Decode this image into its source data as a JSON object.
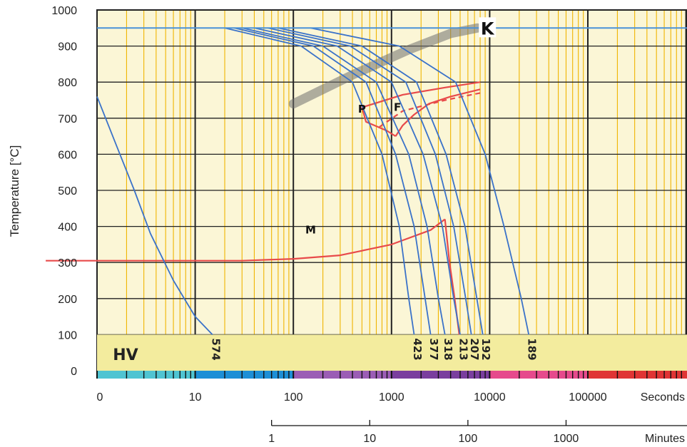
{
  "chart_data": {
    "type": "line",
    "ylabel": "Temperature [°C]",
    "ylim": [
      0,
      1000
    ],
    "y_ticks": [
      "0",
      "100",
      "200",
      "300",
      "400",
      "500",
      "600",
      "700",
      "800",
      "900",
      "1000"
    ],
    "x_scale": "log",
    "x_seconds_ticks": [
      "0",
      "10",
      "100",
      "1000",
      "10000",
      "100000"
    ],
    "x_seconds_unit": "Seconds",
    "x_minutes_ticks": [
      "1",
      "10",
      "100",
      "1000"
    ],
    "x_minutes_unit": "Minutes",
    "austenitizing_temperature": 950,
    "austenitizing_label": "K",
    "hardness_band_label": "HV",
    "hardness_values": [
      {
        "label": "574",
        "x": 15
      },
      {
        "label": "423",
        "x": 1700
      },
      {
        "label": "377",
        "x": 2500
      },
      {
        "label": "318",
        "x": 3500
      },
      {
        "label": "213",
        "x": 5000
      },
      {
        "label": "207",
        "x": 6500
      },
      {
        "label": "192",
        "x": 8500
      },
      {
        "label": "189",
        "x": 25000
      }
    ],
    "region_labels": [
      {
        "label": "M",
        "x": 150,
        "y": 380
      },
      {
        "label": "P",
        "x": 500,
        "y": 715
      },
      {
        "label": "F",
        "x": 1150,
        "y": 720
      }
    ],
    "cooling_curves": [
      {
        "name": "574",
        "x": [
          1,
          1.6,
          2.4,
          3.5,
          6,
          10,
          15
        ],
        "y": [
          760,
          620,
          500,
          380,
          250,
          150,
          100
        ]
      },
      {
        "name": "423",
        "x": [
          20,
          120,
          400,
          800,
          1200,
          1500,
          1700
        ],
        "y": [
          950,
          900,
          800,
          600,
          400,
          200,
          100
        ]
      },
      {
        "name": "377",
        "x": [
          25,
          160,
          550,
          1100,
          1700,
          2200,
          2500
        ],
        "y": [
          950,
          900,
          800,
          600,
          400,
          200,
          100
        ]
      },
      {
        "name": "318",
        "x": [
          30,
          200,
          700,
          1500,
          2300,
          3000,
          3500
        ],
        "y": [
          950,
          900,
          800,
          600,
          400,
          200,
          100
        ]
      },
      {
        "name": "213",
        "x": [
          40,
          280,
          1000,
          2100,
          3300,
          4300,
          5000
        ],
        "y": [
          950,
          900,
          800,
          600,
          400,
          200,
          100
        ]
      },
      {
        "name": "207",
        "x": [
          55,
          380,
          1400,
          2800,
          4300,
          5700,
          6500
        ],
        "y": [
          950,
          900,
          800,
          600,
          400,
          200,
          100
        ]
      },
      {
        "name": "192",
        "x": [
          70,
          500,
          1800,
          3600,
          5600,
          7400,
          8500
        ],
        "y": [
          950,
          900,
          800,
          600,
          400,
          200,
          100
        ]
      },
      {
        "name": "189",
        "x": [
          150,
          1200,
          4500,
          9000,
          14000,
          21000,
          25000
        ],
        "y": [
          950,
          900,
          800,
          600,
          400,
          200,
          100
        ]
      }
    ],
    "transformation_lines": [
      {
        "name": "P start",
        "style": "solid",
        "x": [
          8000,
          3500,
          1300,
          500,
          550,
          900,
          1100
        ],
        "y": [
          800,
          785,
          765,
          730,
          690,
          665,
          650
        ]
      },
      {
        "name": "P end",
        "style": "solid",
        "x": [
          8000,
          4000,
          2400,
          1700,
          1300,
          1100
        ],
        "y": [
          780,
          760,
          740,
          710,
          680,
          650
        ]
      },
      {
        "name": "F line",
        "style": "dashed",
        "x": [
          8000,
          3500,
          1300,
          700
        ],
        "y": [
          770,
          750,
          720,
          670
        ]
      },
      {
        "name": "Ms",
        "style": "solid",
        "x": [
          0.3,
          30,
          100,
          300,
          1000,
          2500,
          3500
        ],
        "y": [
          305,
          305,
          310,
          320,
          350,
          390,
          420
        ]
      },
      {
        "name": "Bainite end",
        "style": "solid",
        "x": [
          3500,
          3900,
          4400,
          4900
        ],
        "y": [
          420,
          300,
          200,
          100
        ]
      }
    ],
    "annealing_band": {
      "x": [
        100,
        400,
        1500,
        4000,
        7500
      ],
      "y": [
        740,
        820,
        890,
        935,
        950
      ]
    },
    "colors": {
      "background": "#fbf6d6",
      "hv_band": "#f3ec9e",
      "minor_grid": "#f0b400",
      "major_grid": "#222222",
      "cooling_curve": "#3a72c9",
      "transformation": "#e84a4a",
      "k_line": "#4a92d8",
      "timebar": [
        "#4fc4d2",
        "#1d8fd6",
        "#9b5db5",
        "#7a3e9e",
        "#e64a8c",
        "#e03535"
      ]
    }
  }
}
